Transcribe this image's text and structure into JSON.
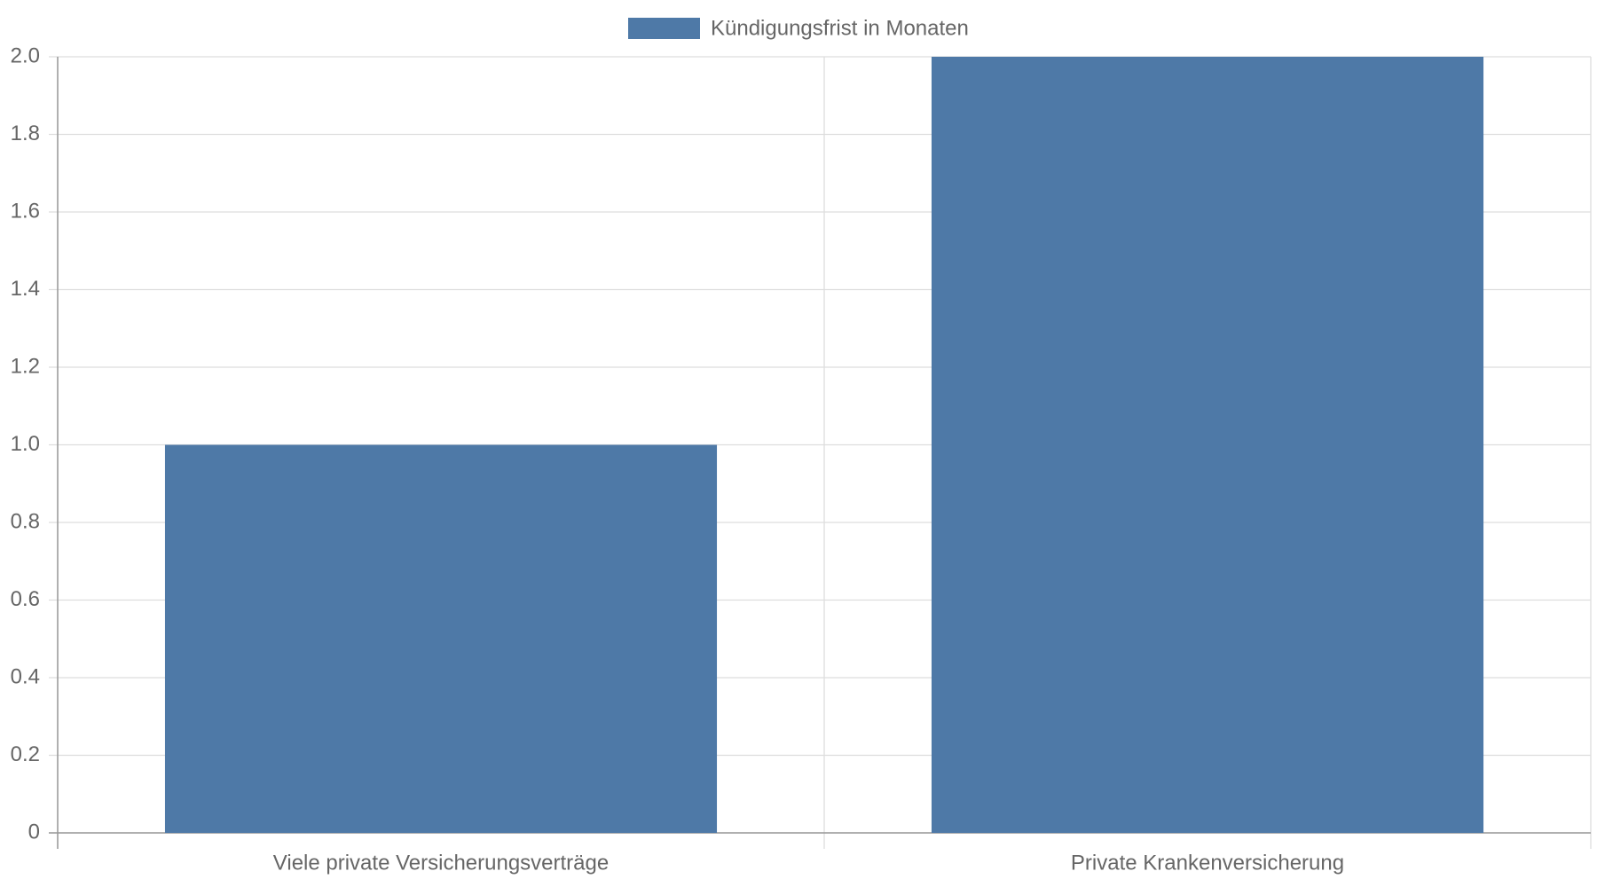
{
  "chart_data": {
    "type": "bar",
    "legend": "Kündigungsfrist in Monaten",
    "categories": [
      "Viele private Versicherungsverträge",
      "Private Krankenversicherung"
    ],
    "values": [
      1,
      2
    ],
    "color": "#4e79a7",
    "ylim": [
      0,
      2
    ],
    "yticks": [
      0,
      0.2,
      0.4,
      0.6,
      0.8,
      {
        "value": 1,
        "label": "1.0"
      },
      1.2,
      1.4,
      1.6,
      1.8,
      {
        "value": 2,
        "label": "2.0"
      }
    ],
    "grid": true
  }
}
